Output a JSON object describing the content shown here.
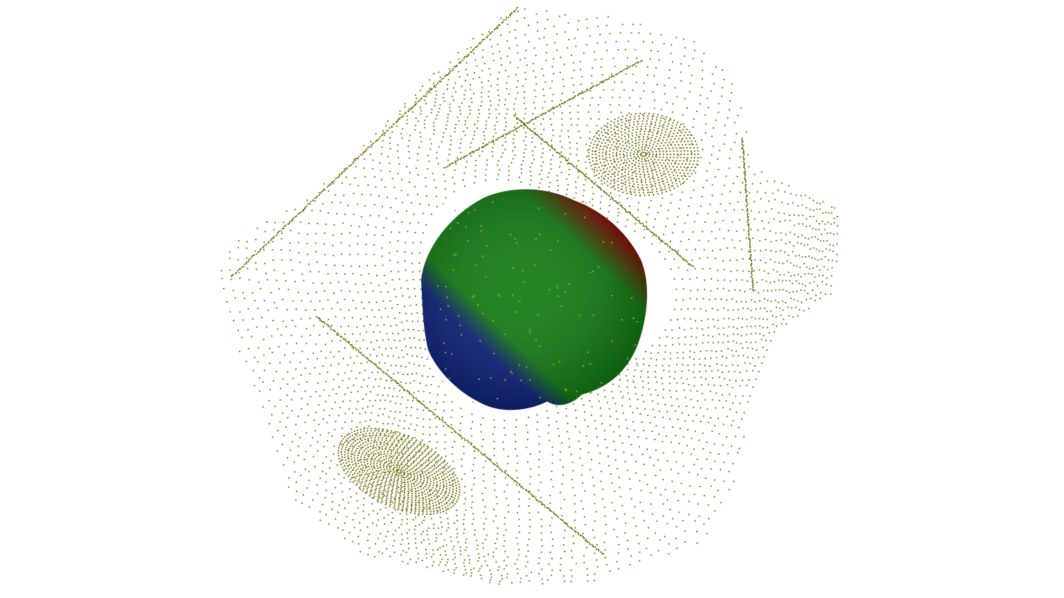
{
  "scene": {
    "background_color": "#ffffff",
    "point_cloud": {
      "color": "#7a7a10",
      "color_dense": "#6b6b0a"
    },
    "mesh": {
      "colors": {
        "red": "#8b0000",
        "green": "#0f7a0f",
        "blue": "#0a1f7a"
      }
    }
  }
}
